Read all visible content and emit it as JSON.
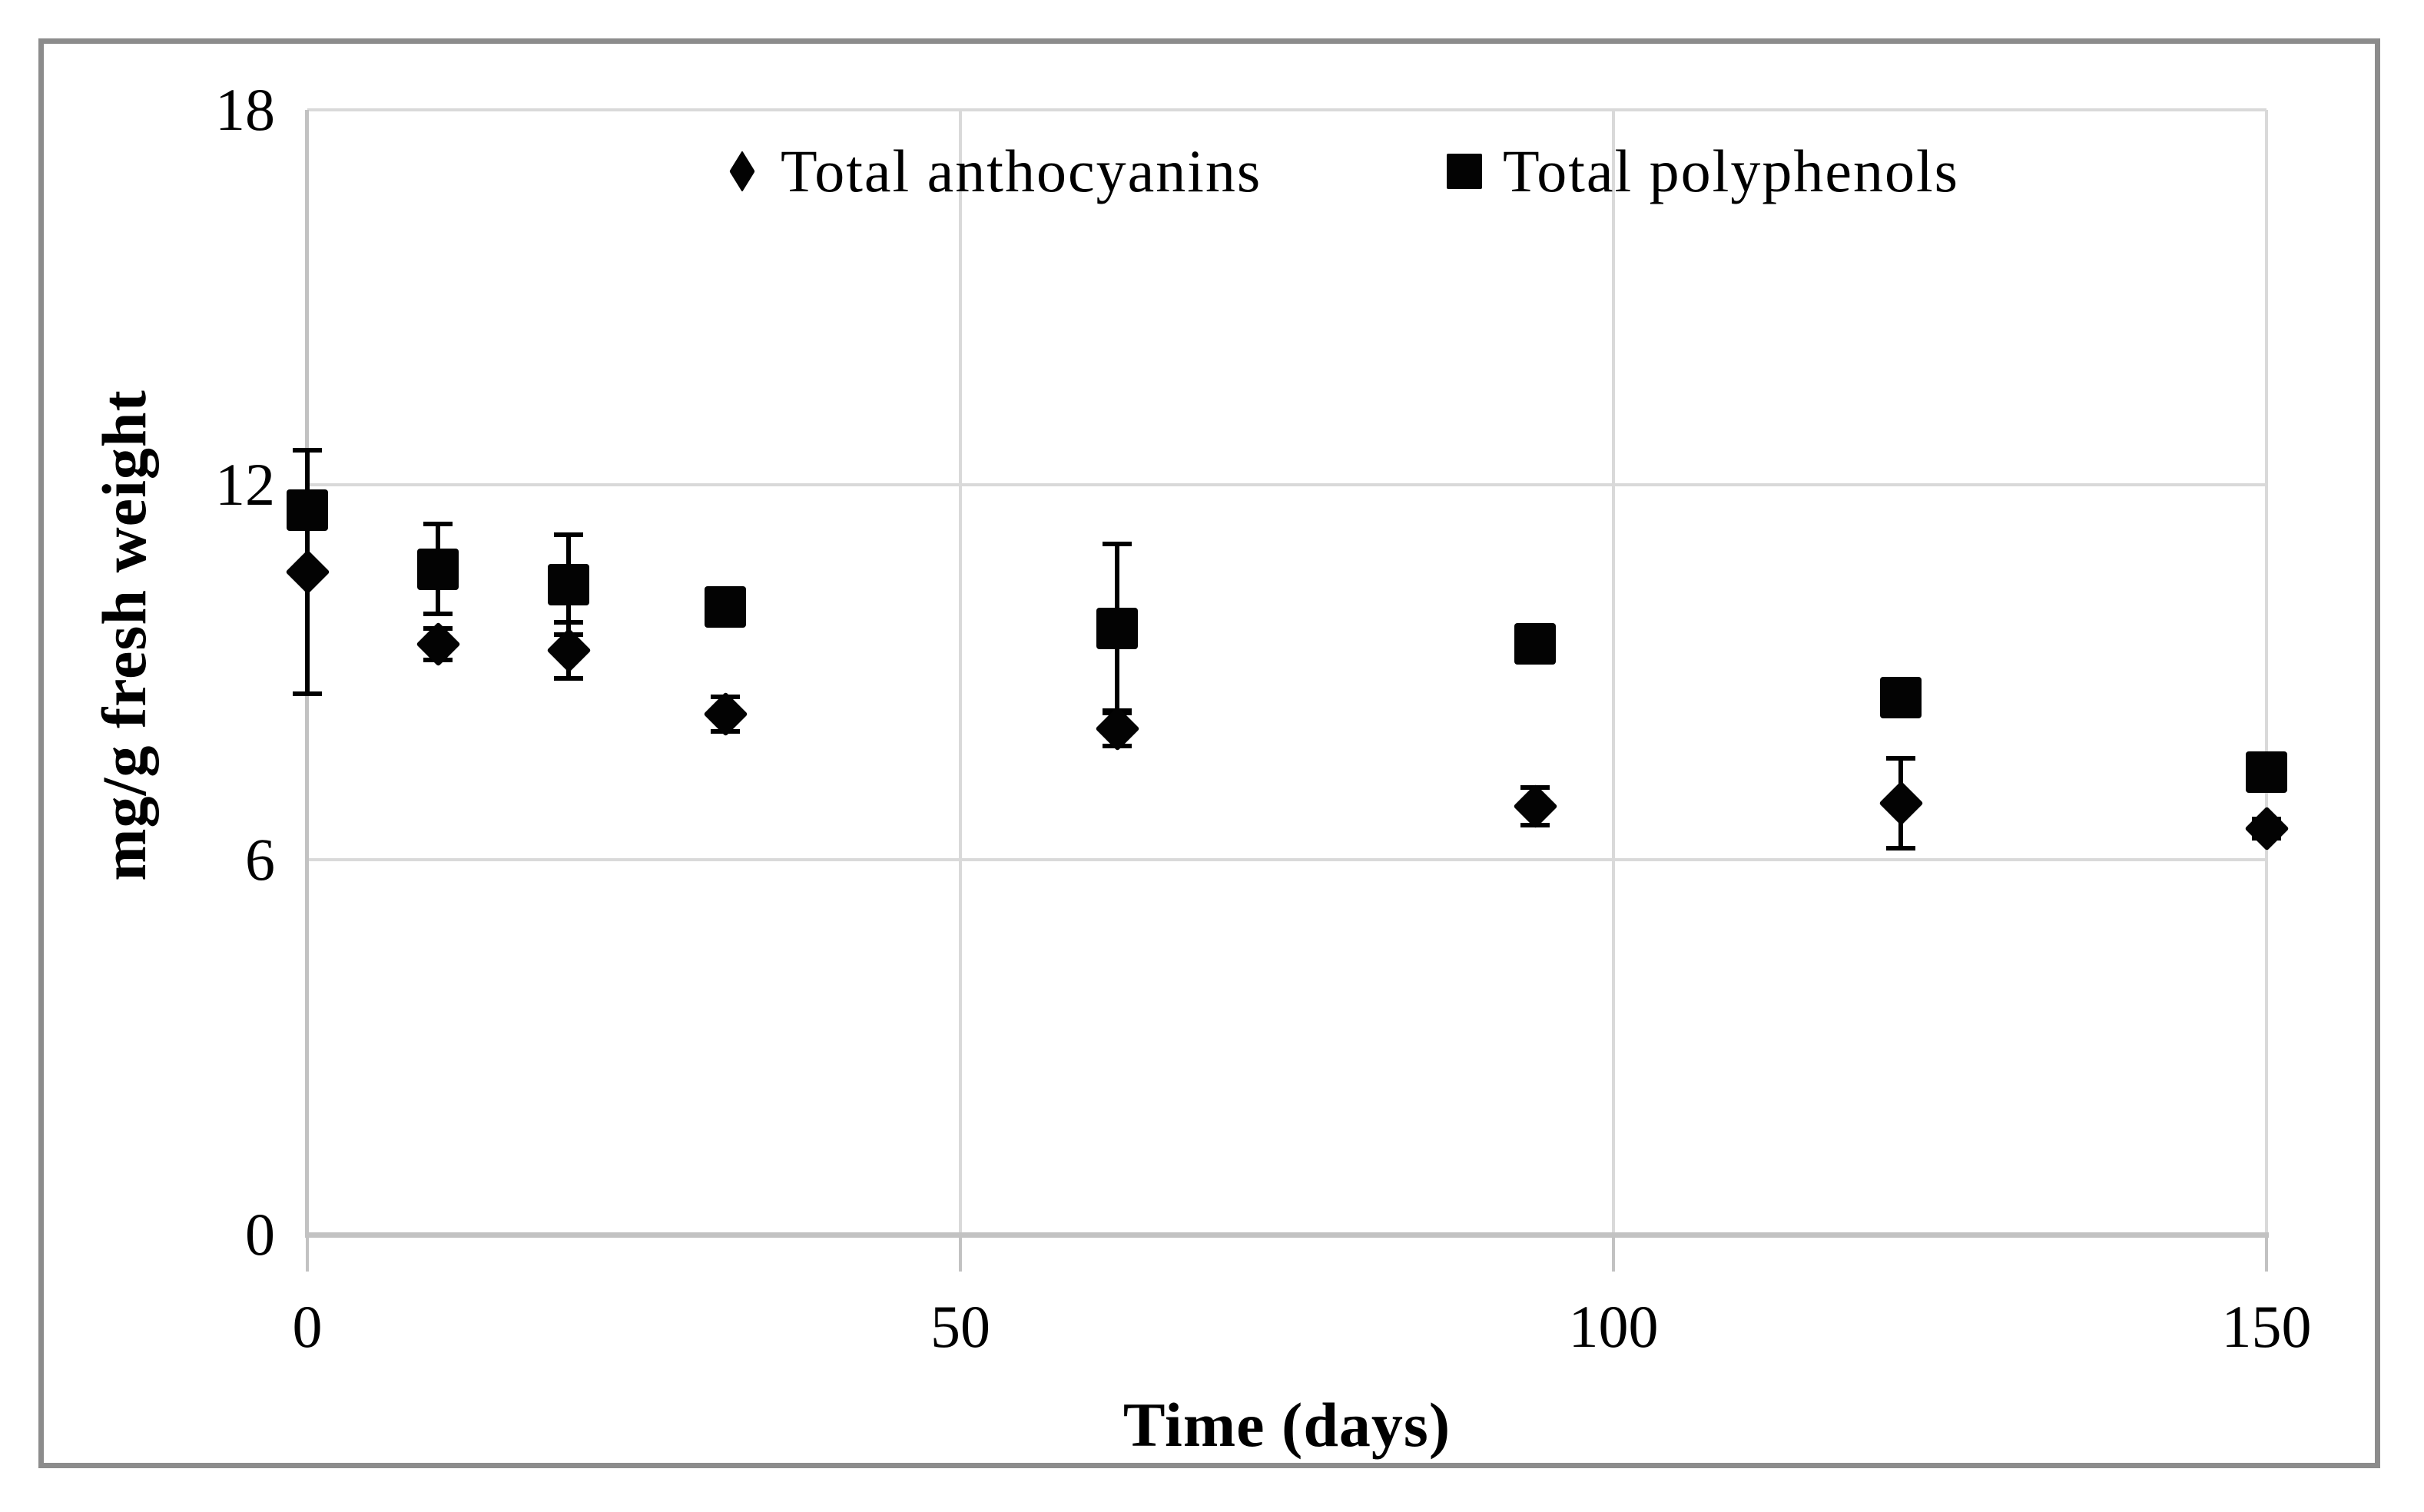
{
  "figure": {
    "background": "#ffffff",
    "border_color": "#8c8c8c",
    "gridline_color": "#d9d9d9",
    "axis_line_color": "#c2c2c2",
    "marker_color": "#000000"
  },
  "legend": {
    "items": [
      {
        "label": "Total anthocyanins",
        "marker": "diamond"
      },
      {
        "label": "Total polyphenols",
        "marker": "square"
      }
    ]
  },
  "axes": {
    "x": {
      "title": "Time (days)",
      "ticks": [
        "0",
        "50",
        "100",
        "150"
      ],
      "tick_values": [
        0,
        50,
        100,
        150
      ],
      "min": 0,
      "max": 150
    },
    "y": {
      "title": "mg/g fresh weight",
      "ticks": [
        "0",
        "6",
        "12",
        "18"
      ],
      "tick_values": [
        0,
        6,
        12,
        18
      ],
      "min": 0,
      "max": 18
    }
  },
  "chart_data": {
    "type": "scatter",
    "title": "",
    "xlabel": "Time (days)",
    "ylabel": "mg/g fresh weight",
    "xlim": [
      0,
      150
    ],
    "ylim": [
      0,
      18
    ],
    "grid": true,
    "legend_position": "top-center",
    "x": [
      0,
      10,
      20,
      32,
      62,
      94,
      122,
      150
    ],
    "series": [
      {
        "name": "Total anthocyanins",
        "marker": "diamond",
        "color": "#000000",
        "values": [
          10.6,
          9.45,
          9.35,
          8.33,
          8.1,
          6.85,
          6.9,
          6.5
        ],
        "errors": [
          1.95,
          0.25,
          0.45,
          0.28,
          0.28,
          0.3,
          0.72,
          0.15
        ]
      },
      {
        "name": "Total polyphenols",
        "marker": "square",
        "color": "#000000",
        "values": [
          11.6,
          10.65,
          10.4,
          10.05,
          9.7,
          9.45,
          8.6,
          7.4
        ],
        "errors": [
          0.95,
          0.72,
          0.8,
          0,
          1.35,
          0,
          0,
          0
        ]
      }
    ]
  }
}
